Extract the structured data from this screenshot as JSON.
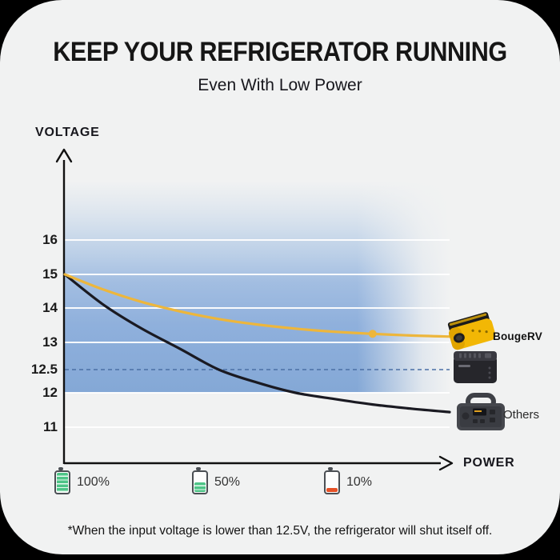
{
  "colors": {
    "page_bg": "#000000",
    "card_bg": "#f1f2f2",
    "accent_yellow": "#EDB63C",
    "curve_black": "#1a1a22",
    "dashed_blue": "#4a6fa5",
    "grid_white": "#ffffff",
    "battery_green": "#4ec487",
    "battery_low_red": "#e65126",
    "blue_area_deep": "#84A8D6"
  },
  "header": {
    "title": "KEEP YOUR REFRIGERATOR RUNNING",
    "subtitle": "Even With Low Power"
  },
  "chart": {
    "y_axis_label": "VOLTAGE",
    "x_axis_label": "POWER"
  },
  "products": {
    "bougerv_label": "BougeRV",
    "others_label": "Others",
    "icons": [
      "inverter-product-image",
      "fridge-product-image",
      "power-station-product-image"
    ]
  },
  "legend": {
    "items": [
      {
        "icon": "battery-full-icon",
        "label": "100%"
      },
      {
        "icon": "battery-half-icon",
        "label": "50%"
      },
      {
        "icon": "battery-low-icon",
        "label": "10%"
      }
    ]
  },
  "footnote": "*When the input voltage is lower than 12.5V, the refrigerator will shut itself off.",
  "chart_data": {
    "type": "line",
    "xlabel": "POWER",
    "ylabel": "VOLTAGE",
    "x_percent": [
      0,
      10,
      20,
      30,
      40,
      50,
      60,
      70,
      80,
      90,
      100
    ],
    "y_ticks": [
      16,
      15,
      14,
      13,
      12.5,
      12,
      11
    ],
    "shutoff_threshold_v": 12.5,
    "grid": true,
    "legend_position": "right",
    "series": [
      {
        "name": "BougeRV",
        "color": "#EDB63C",
        "values": [
          15,
          14.55,
          14.18,
          13.9,
          13.68,
          13.52,
          13.4,
          13.31,
          13.25,
          13.2,
          13.17
        ],
        "marker_at_percent": 80
      },
      {
        "name": "Others",
        "color": "#1a1a22",
        "values": [
          15,
          14.1,
          13.4,
          12.88,
          12.5,
          12.22,
          12.0,
          11.82,
          11.66,
          11.54,
          11.44
        ]
      }
    ]
  }
}
